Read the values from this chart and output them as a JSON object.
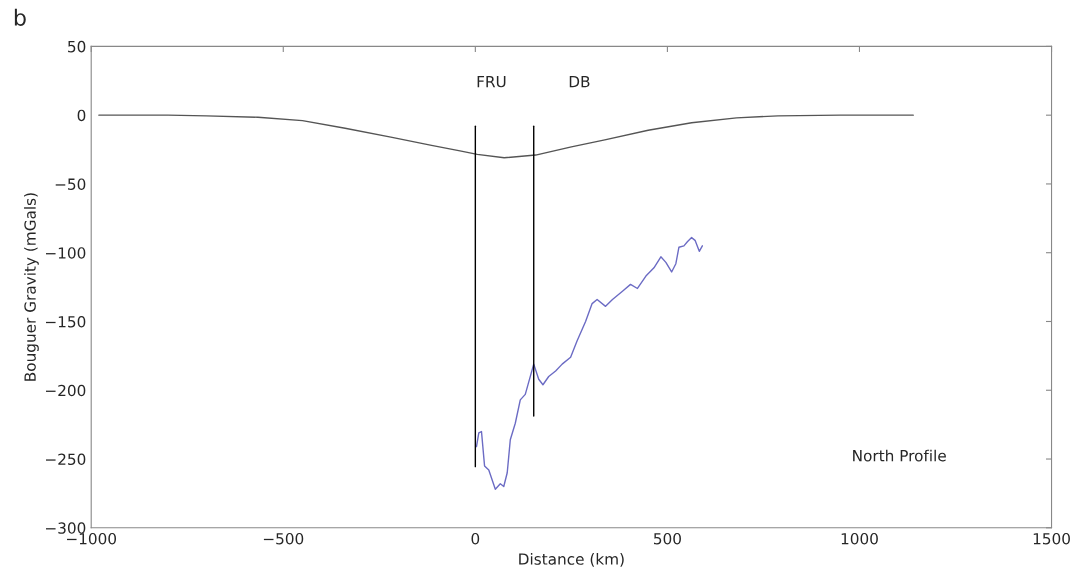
{
  "chart_data": {
    "type": "line",
    "xlabel": "Distance (km)",
    "ylabel": "Bouguer Gravity (mGals)",
    "xlim": [
      -1000,
      1500
    ],
    "ylim": [
      -300,
      50
    ],
    "xticks": [
      {
        "value": -1000,
        "label": "−1000"
      },
      {
        "value": -500,
        "label": "−500"
      },
      0,
      500,
      1000,
      1500
    ],
    "yticks": [
      50,
      0,
      {
        "value": -50,
        "label": "−50"
      },
      {
        "value": -100,
        "label": "−100"
      },
      {
        "value": -150,
        "label": "−150"
      },
      {
        "value": -200,
        "label": "−200"
      },
      {
        "value": -250,
        "label": "−250"
      },
      {
        "value": -300,
        "label": "−300"
      }
    ],
    "grid": false,
    "series": [
      {
        "color": "#6b6bc4",
        "x": [
          3,
          9,
          16,
          24,
          35,
          52,
          65,
          74,
          83,
          91,
          104,
          117,
          130,
          152,
          165,
          176,
          191,
          209,
          226,
          248,
          265,
          287,
          304,
          317,
          339,
          357,
          383,
          404,
          422,
          444,
          465,
          483,
          496,
          511,
          522,
          530,
          543,
          552,
          563,
          572,
          583,
          591
        ],
        "values": [
          -241,
          -231,
          -230,
          -255,
          -258,
          -272,
          -268,
          -270,
          -260,
          -236,
          -224,
          -207,
          -203,
          -181,
          -192,
          -196,
          -190,
          -186,
          -181,
          -176,
          -164,
          -150,
          -137,
          -134,
          -139,
          -134,
          -128,
          -123,
          -126,
          -117,
          -111,
          -103,
          -107,
          -114,
          -108,
          -96,
          -95,
          -92,
          -89,
          -91,
          -99,
          -95
        ]
      },
      {
        "color": "#555555",
        "x": [
          -980,
          -800,
          -700,
          -566,
          -450,
          -339,
          -220,
          -114,
          -40,
          5,
          75,
          157,
          250,
          337,
          450,
          563,
          680,
          788,
          950,
          1140
        ],
        "values": [
          0,
          0,
          -0.5,
          -1.5,
          -4,
          -9.5,
          -16,
          -22,
          -26,
          -28.5,
          -31,
          -29,
          -23,
          -18,
          -11,
          -5.5,
          -2,
          -0.5,
          0,
          0
        ]
      }
    ],
    "ref_lines": [
      {
        "axis": "x",
        "value": 0,
        "color": "#000000"
      },
      {
        "axis": "x",
        "value": 152,
        "color": "#000000"
      }
    ],
    "annotations": [
      "b",
      "FRU",
      "DB",
      "North Profile"
    ]
  }
}
